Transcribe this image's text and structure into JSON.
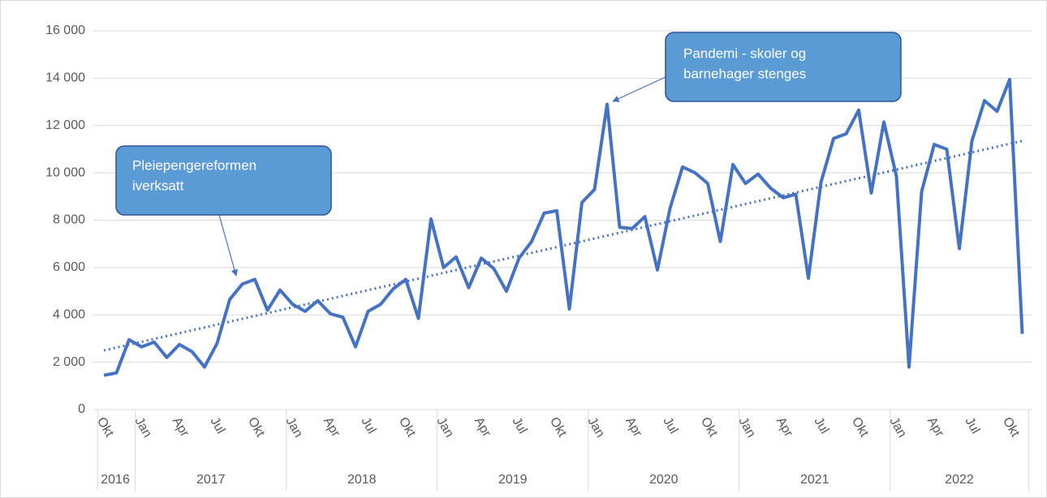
{
  "chart_data": {
    "type": "line",
    "categories": [
      "Okt",
      null,
      null,
      "Jan",
      null,
      null,
      "Apr",
      null,
      null,
      "Jul",
      null,
      null,
      "Okt",
      null,
      null,
      "Jan",
      null,
      null,
      "Apr",
      null,
      null,
      "Jul",
      null,
      null,
      "Okt",
      null,
      null,
      "Jan",
      null,
      null,
      "Apr",
      null,
      null,
      "Jul",
      null,
      null,
      "Okt",
      null,
      null,
      "Jan",
      null,
      null,
      "Apr",
      null,
      null,
      "Jul",
      null,
      null,
      "Okt",
      null,
      null,
      "Jan",
      null,
      null,
      "Apr",
      null,
      null,
      "Jul",
      null,
      null,
      "Okt",
      null,
      null,
      "Jan",
      null,
      null,
      "Apr",
      null,
      null,
      "Jul",
      null,
      null,
      "Okt",
      null
    ],
    "year_groups": [
      {
        "label": "2016",
        "months": 3
      },
      {
        "label": "2017",
        "months": 12
      },
      {
        "label": "2018",
        "months": 12
      },
      {
        "label": "2019",
        "months": 12
      },
      {
        "label": "2020",
        "months": 12
      },
      {
        "label": "2021",
        "months": 12
      },
      {
        "label": "2022",
        "months": 11
      }
    ],
    "series": [
      {
        "color": "#4472c4",
        "values": [
          1450,
          1550,
          2950,
          2650,
          2850,
          2200,
          2750,
          2450,
          1800,
          2800,
          4650,
          5300,
          5500,
          4200,
          5050,
          4450,
          4150,
          4600,
          4050,
          3900,
          2650,
          4150,
          4450,
          5100,
          5500,
          3850,
          8050,
          6000,
          6450,
          5150,
          6400,
          5950,
          5000,
          6400,
          7100,
          8300,
          8400,
          4250,
          8750,
          9300,
          12900,
          7700,
          7650,
          8150,
          5900,
          8500,
          10250,
          10000,
          9550,
          7100,
          10350,
          9550,
          9950,
          9350,
          8950,
          9100,
          5550,
          9600,
          11450,
          11650,
          12650,
          9150,
          12150,
          9850,
          1800,
          9200,
          11200,
          11000,
          6800,
          11350,
          13050,
          12600,
          13950,
          3200
        ]
      }
    ],
    "trendline": {
      "color": "#4472c4",
      "values": [
        2500,
        11350
      ]
    },
    "ylim": [
      0,
      16000
    ],
    "yticks": [
      0,
      {
        "value": 2000,
        "label": "2 000"
      },
      {
        "value": 4000,
        "label": "4 000"
      },
      {
        "value": 6000,
        "label": "6 000"
      },
      {
        "value": 8000,
        "label": "8 000"
      },
      {
        "value": 10000,
        "label": "10 000"
      },
      {
        "value": 12000,
        "label": "12 000"
      },
      {
        "value": 14000,
        "label": "14 000"
      },
      {
        "value": 16000,
        "label": "16 000"
      }
    ],
    "grid": true,
    "annotations": [
      {
        "lines": [
          "Pleiepengereformen",
          "iverksatt"
        ]
      },
      {
        "lines": [
          "Pandemi - skoler og",
          "barnehager stenges"
        ]
      }
    ]
  }
}
